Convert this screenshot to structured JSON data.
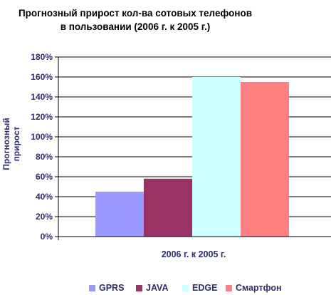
{
  "chart_data": {
    "type": "bar",
    "title_line1": "Прогнозный прирост кол-ва сотовых телефонов",
    "title_line2": "в пользовании (2006 г. к 2005 г.)",
    "xlabel": "2006 г. к 2005 г.",
    "ylabel": "Прогнозный прирост",
    "categories": [
      "2006 г. к 2005 г."
    ],
    "ylim": [
      0,
      180
    ],
    "yticks": [
      "0%",
      "20%",
      "40%",
      "60%",
      "80%",
      "100%",
      "120%",
      "140%",
      "160%",
      "180%"
    ],
    "grid": true,
    "legend_position": "bottom",
    "series": [
      {
        "name": "GPRS",
        "values": [
          45
        ],
        "color": "#9999ff"
      },
      {
        "name": "JAVA",
        "values": [
          58
        ],
        "color": "#993366"
      },
      {
        "name": "EDGE",
        "values": [
          160
        ],
        "color": "#ccffff"
      },
      {
        "name": "Смартфон",
        "values": [
          155
        ],
        "color": "#ff8080"
      }
    ]
  }
}
